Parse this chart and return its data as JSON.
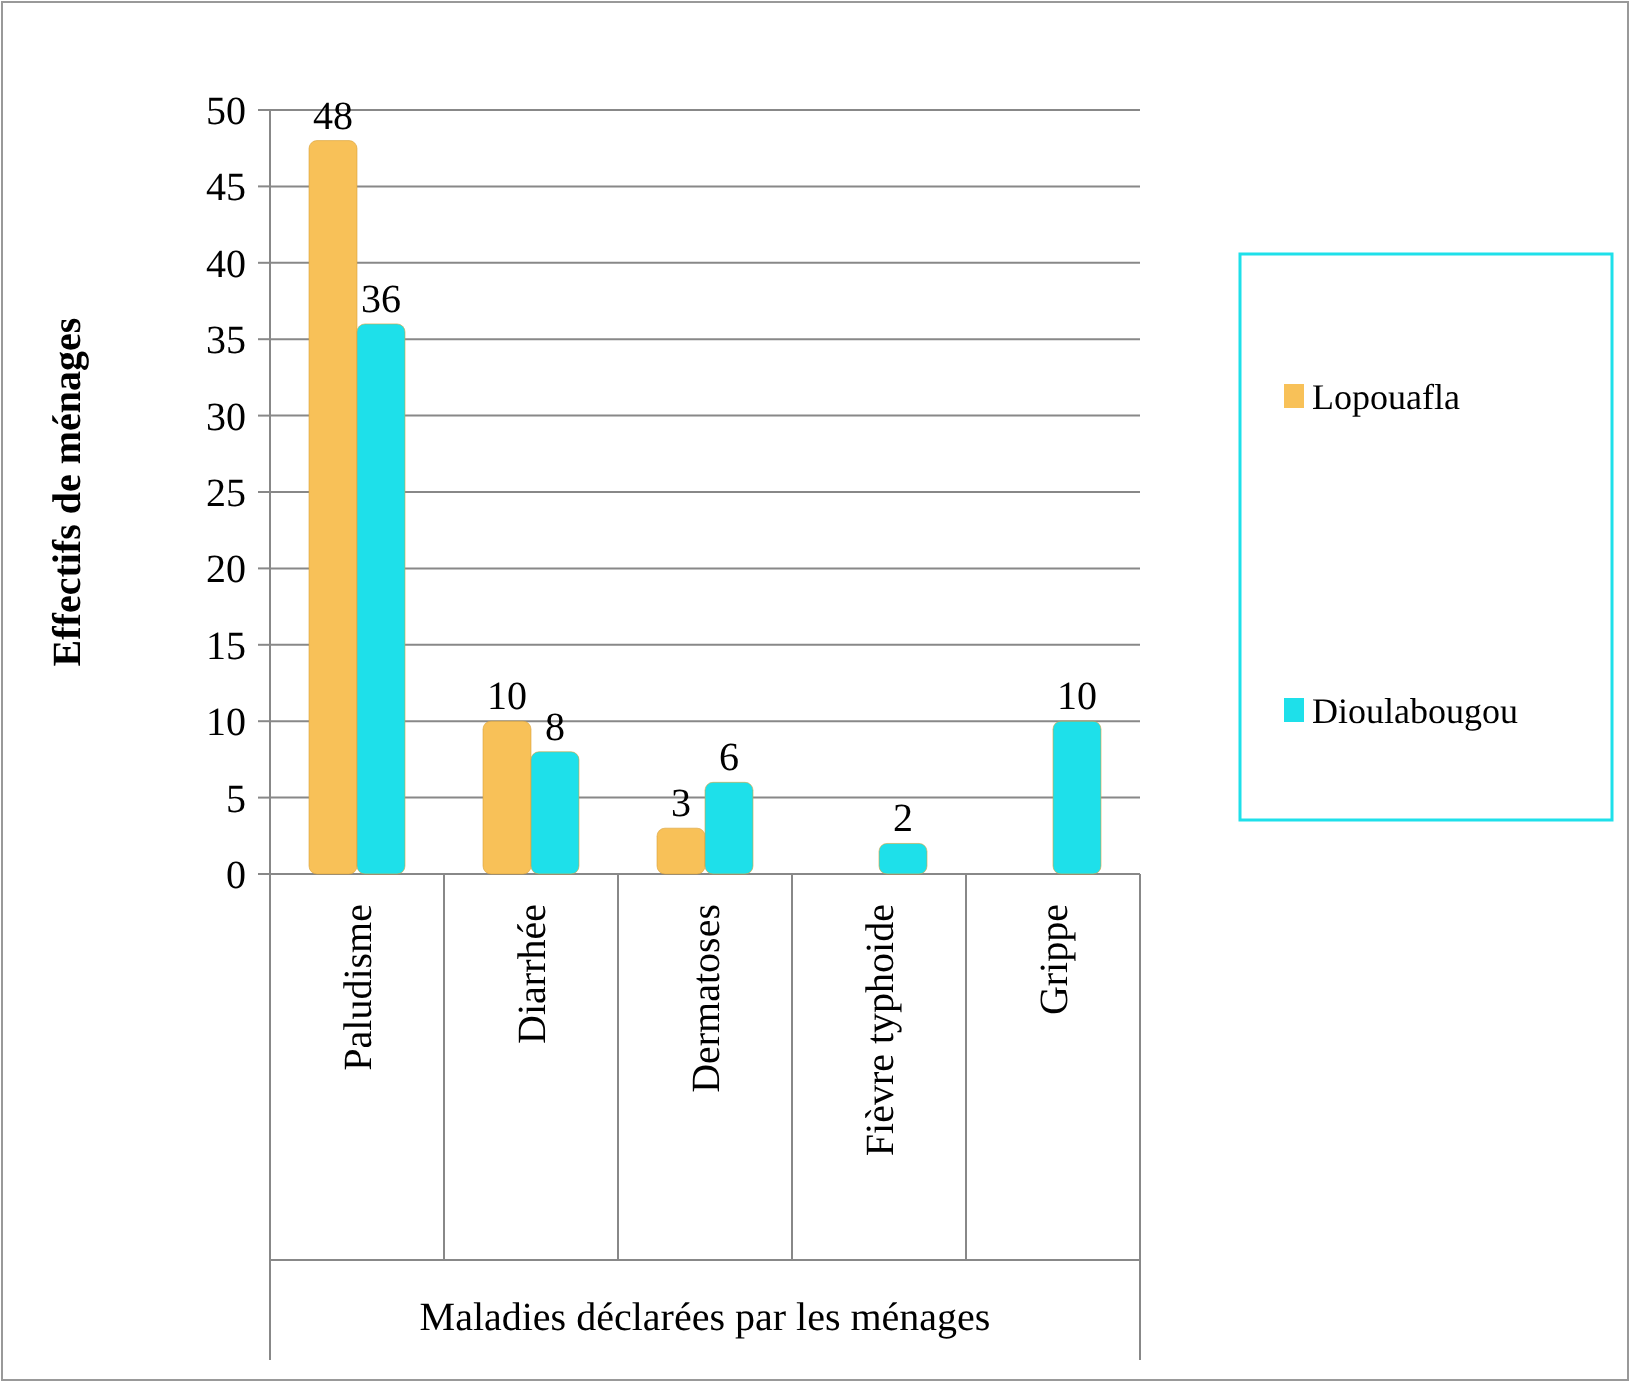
{
  "chart_data": {
    "type": "bar",
    "xlabel": "Maladies déclarées par les ménages",
    "ylabel": "Effectifs de ménages",
    "categories": [
      "Paludisme",
      "Diarrhée",
      "Dermatoses",
      "Fièvre typhoide",
      "Grippe"
    ],
    "series": [
      {
        "name": "Lopouafla",
        "color": "#f8c158",
        "values": [
          48,
          10,
          3,
          null,
          null
        ]
      },
      {
        "name": "Dioulabougou",
        "color": "#1ee0ea",
        "values": [
          36,
          8,
          6,
          2,
          10
        ]
      }
    ],
    "ylim": [
      0,
      50
    ],
    "yticks": [
      0,
      5,
      10,
      15,
      20,
      25,
      30,
      35,
      40,
      45,
      50
    ],
    "grid": "y",
    "legend": "right",
    "data_labels": true
  }
}
